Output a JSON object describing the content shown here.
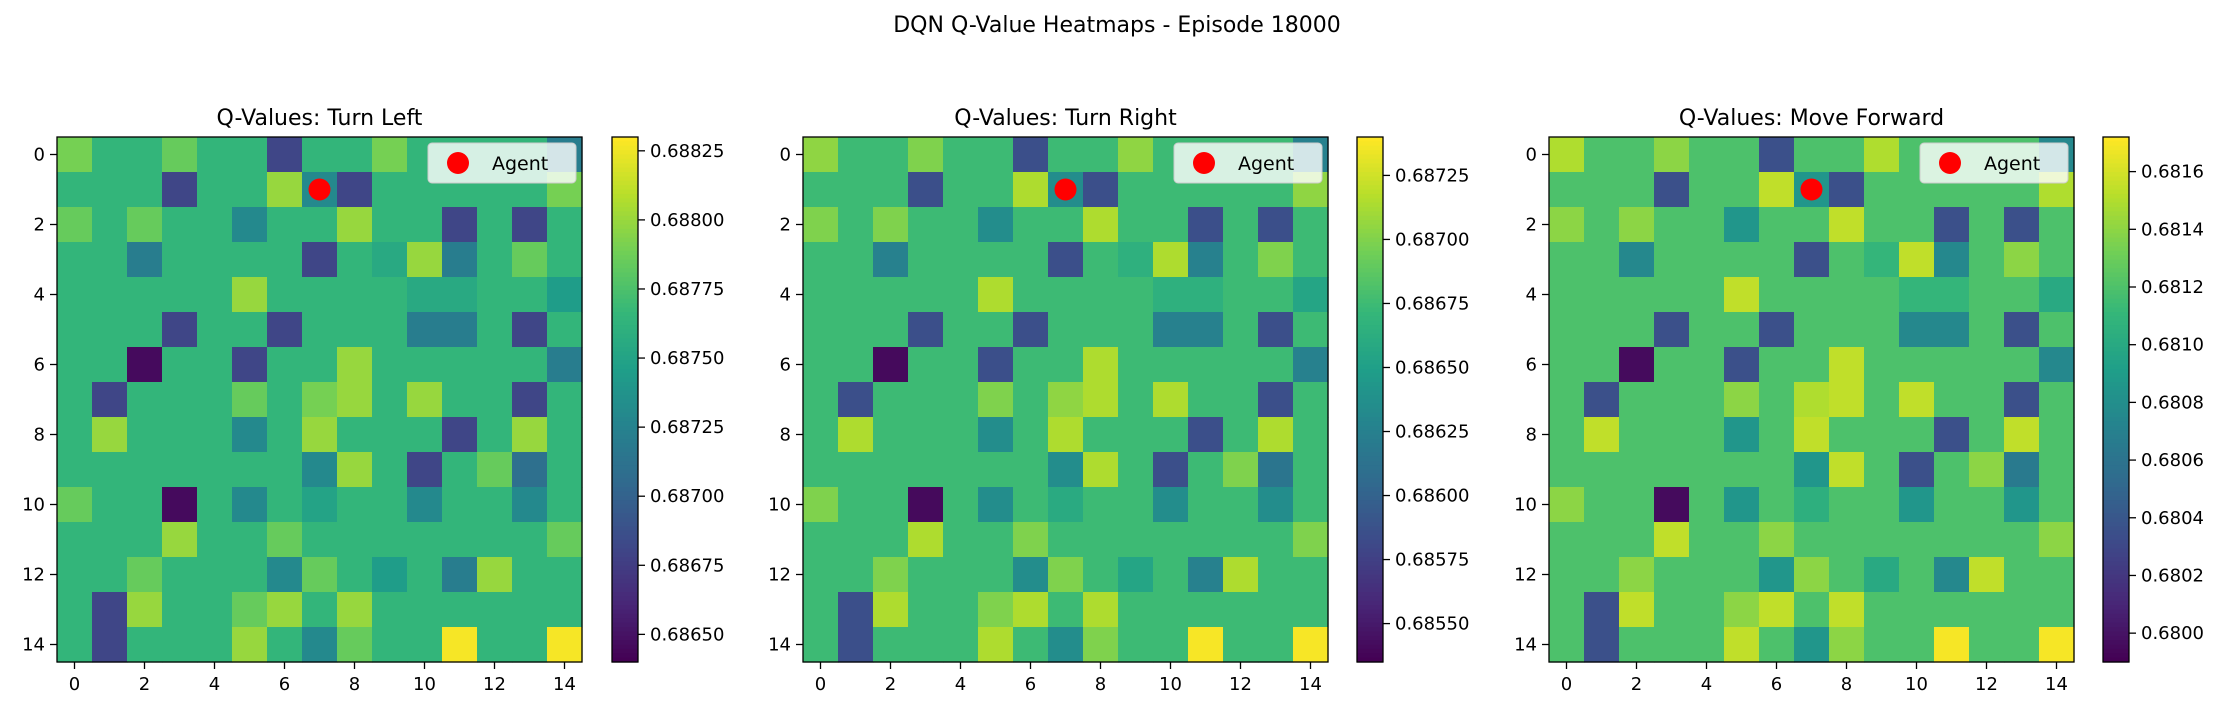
{
  "figure": {
    "suptitle": "DQN Q-Value Heatmaps - Episode 18000"
  },
  "palette": {
    "viridis": [
      "#440154",
      "#482878",
      "#3e4989",
      "#31688e",
      "#26828e",
      "#1f9e89",
      "#35b779",
      "#6ece58",
      "#b5de2b",
      "#fde725"
    ],
    "agent": "#ff0000",
    "legend_bg": "#ffffff"
  },
  "chart_data": [
    {
      "type": "heatmap",
      "title": "Q-Values: Turn Left",
      "legend": {
        "label": "Agent",
        "placement": "top-right"
      },
      "agent": {
        "x": 7,
        "y": 1
      },
      "xticks": [
        0,
        2,
        4,
        6,
        8,
        10,
        12,
        14
      ],
      "yticks": [
        0,
        2,
        4,
        6,
        8,
        10,
        12,
        14
      ],
      "colorbar": {
        "vmin": 0.6864,
        "vmax": 0.6883,
        "ticks": [
          0.6865,
          0.68675,
          0.687,
          0.68725,
          0.6875,
          0.68775,
          0.688,
          0.68825
        ],
        "tick_labels": [
          "0.68650",
          "0.68675",
          "0.68700",
          "0.68725",
          "0.68750",
          "0.68775",
          "0.68800",
          "0.68825"
        ]
      },
      "grid": [
        [
          0.6879,
          0.68765,
          0.68765,
          0.68785,
          0.68765,
          0.68765,
          0.6868,
          0.68765,
          0.68765,
          0.6879,
          0.68765,
          0.68765,
          0.68765,
          0.68765,
          0.6872
        ],
        [
          0.68765,
          0.68765,
          0.68765,
          0.6868,
          0.68765,
          0.68765,
          0.688,
          0.6873,
          0.6868,
          0.68765,
          0.68765,
          0.68765,
          0.68765,
          0.68765,
          0.6879
        ],
        [
          0.68785,
          0.68765,
          0.68785,
          0.68765,
          0.68765,
          0.6873,
          0.68765,
          0.68765,
          0.688,
          0.68765,
          0.68765,
          0.6868,
          0.68765,
          0.6868,
          0.68765
        ],
        [
          0.68765,
          0.68765,
          0.6872,
          0.68765,
          0.68765,
          0.68765,
          0.68765,
          0.6868,
          0.68765,
          0.68755,
          0.688,
          0.6872,
          0.68765,
          0.68785,
          0.68765
        ],
        [
          0.68765,
          0.68765,
          0.68765,
          0.68765,
          0.68765,
          0.688,
          0.68765,
          0.68765,
          0.68765,
          0.68765,
          0.68755,
          0.68755,
          0.68765,
          0.68765,
          0.68745
        ],
        [
          0.68765,
          0.68765,
          0.68765,
          0.6868,
          0.68765,
          0.68765,
          0.6868,
          0.68765,
          0.68765,
          0.68765,
          0.6872,
          0.6872,
          0.68765,
          0.6868,
          0.68765
        ],
        [
          0.68765,
          0.68765,
          0.68645,
          0.68765,
          0.68765,
          0.6868,
          0.68765,
          0.68765,
          0.688,
          0.68765,
          0.68765,
          0.68765,
          0.68765,
          0.68765,
          0.6872
        ],
        [
          0.68765,
          0.6868,
          0.68765,
          0.68765,
          0.68765,
          0.68785,
          0.68765,
          0.6879,
          0.688,
          0.68765,
          0.688,
          0.68765,
          0.68765,
          0.6868,
          0.68765
        ],
        [
          0.68765,
          0.688,
          0.68765,
          0.68765,
          0.68765,
          0.6873,
          0.68765,
          0.688,
          0.68765,
          0.68765,
          0.68765,
          0.6868,
          0.68765,
          0.688,
          0.68765
        ],
        [
          0.68765,
          0.68765,
          0.68765,
          0.68765,
          0.68765,
          0.68765,
          0.68765,
          0.6873,
          0.688,
          0.68765,
          0.6868,
          0.68765,
          0.68785,
          0.6871,
          0.68765
        ],
        [
          0.68785,
          0.68765,
          0.68765,
          0.68645,
          0.68765,
          0.6873,
          0.68765,
          0.6875,
          0.68765,
          0.68765,
          0.6873,
          0.68765,
          0.68765,
          0.6873,
          0.68765
        ],
        [
          0.68765,
          0.68765,
          0.68765,
          0.688,
          0.68765,
          0.68765,
          0.68785,
          0.68765,
          0.68765,
          0.68765,
          0.68765,
          0.68765,
          0.68765,
          0.68765,
          0.68785
        ],
        [
          0.68765,
          0.68765,
          0.68785,
          0.68765,
          0.68765,
          0.68765,
          0.6873,
          0.68785,
          0.68765,
          0.68745,
          0.68765,
          0.6872,
          0.688,
          0.68765,
          0.68765
        ],
        [
          0.68765,
          0.6868,
          0.688,
          0.68765,
          0.68765,
          0.68785,
          0.688,
          0.68765,
          0.688,
          0.68765,
          0.68765,
          0.68765,
          0.68765,
          0.68765,
          0.68765
        ],
        [
          0.68765,
          0.6868,
          0.68765,
          0.68765,
          0.68765,
          0.688,
          0.68765,
          0.6873,
          0.68785,
          0.68765,
          0.68765,
          0.68828,
          0.68765,
          0.68765,
          0.68828
        ]
      ]
    },
    {
      "type": "heatmap",
      "title": "Q-Values: Turn Right",
      "legend": {
        "label": "Agent",
        "placement": "top-right"
      },
      "agent": {
        "x": 7,
        "y": 1
      },
      "xticks": [
        0,
        2,
        4,
        6,
        8,
        10,
        12,
        14
      ],
      "yticks": [
        0,
        2,
        4,
        6,
        8,
        10,
        12,
        14
      ],
      "colorbar": {
        "vmin": 0.68535,
        "vmax": 0.6874,
        "ticks": [
          0.6855,
          0.68575,
          0.686,
          0.68625,
          0.6865,
          0.68675,
          0.687,
          0.68725
        ],
        "tick_labels": [
          "0.68550",
          "0.68575",
          "0.68600",
          "0.68625",
          "0.68650",
          "0.68675",
          "0.68700",
          "0.68725"
        ]
      },
      "grid": [
        [
          0.68705,
          0.68675,
          0.68675,
          0.687,
          0.68675,
          0.68675,
          0.68585,
          0.68675,
          0.68675,
          0.68705,
          0.68675,
          0.68675,
          0.68675,
          0.68675,
          0.68625
        ],
        [
          0.68675,
          0.68675,
          0.68675,
          0.68585,
          0.68675,
          0.68675,
          0.68715,
          0.68635,
          0.68585,
          0.68675,
          0.68675,
          0.68675,
          0.68675,
          0.68675,
          0.68705
        ],
        [
          0.687,
          0.68675,
          0.687,
          0.68675,
          0.68675,
          0.68635,
          0.68675,
          0.68675,
          0.68715,
          0.68675,
          0.68675,
          0.68585,
          0.68675,
          0.68585,
          0.68675
        ],
        [
          0.68675,
          0.68675,
          0.68625,
          0.68675,
          0.68675,
          0.68675,
          0.68675,
          0.68585,
          0.68675,
          0.68665,
          0.68715,
          0.68625,
          0.68675,
          0.687,
          0.68675
        ],
        [
          0.68675,
          0.68675,
          0.68675,
          0.68675,
          0.68675,
          0.68715,
          0.68675,
          0.68675,
          0.68675,
          0.68675,
          0.68665,
          0.68665,
          0.68675,
          0.68675,
          0.68655
        ],
        [
          0.68675,
          0.68675,
          0.68675,
          0.68585,
          0.68675,
          0.68675,
          0.68585,
          0.68675,
          0.68675,
          0.68675,
          0.68625,
          0.68625,
          0.68675,
          0.68585,
          0.68675
        ],
        [
          0.68675,
          0.68675,
          0.6854,
          0.68675,
          0.68675,
          0.68585,
          0.68675,
          0.68675,
          0.68715,
          0.68675,
          0.68675,
          0.68675,
          0.68675,
          0.68675,
          0.68625
        ],
        [
          0.68675,
          0.68585,
          0.68675,
          0.68675,
          0.68675,
          0.687,
          0.68675,
          0.68705,
          0.68715,
          0.68675,
          0.68715,
          0.68675,
          0.68675,
          0.68585,
          0.68675
        ],
        [
          0.68675,
          0.68715,
          0.68675,
          0.68675,
          0.68675,
          0.68635,
          0.68675,
          0.68715,
          0.68675,
          0.68675,
          0.68675,
          0.68585,
          0.68675,
          0.68715,
          0.68675
        ],
        [
          0.68675,
          0.68675,
          0.68675,
          0.68675,
          0.68675,
          0.68675,
          0.68675,
          0.68635,
          0.68715,
          0.68675,
          0.68585,
          0.68675,
          0.687,
          0.68615,
          0.68675
        ],
        [
          0.687,
          0.68675,
          0.68675,
          0.6854,
          0.68675,
          0.68635,
          0.68675,
          0.6866,
          0.68675,
          0.68675,
          0.68635,
          0.68675,
          0.68675,
          0.68635,
          0.68675
        ],
        [
          0.68675,
          0.68675,
          0.68675,
          0.68715,
          0.68675,
          0.68675,
          0.687,
          0.68675,
          0.68675,
          0.68675,
          0.68675,
          0.68675,
          0.68675,
          0.68675,
          0.687
        ],
        [
          0.68675,
          0.68675,
          0.687,
          0.68675,
          0.68675,
          0.68675,
          0.68635,
          0.687,
          0.68675,
          0.68655,
          0.68675,
          0.68625,
          0.68715,
          0.68675,
          0.68675
        ],
        [
          0.68675,
          0.68585,
          0.68715,
          0.68675,
          0.68675,
          0.687,
          0.68715,
          0.68675,
          0.68715,
          0.68675,
          0.68675,
          0.68675,
          0.68675,
          0.68675,
          0.68675
        ],
        [
          0.68675,
          0.68585,
          0.68675,
          0.68675,
          0.68675,
          0.68715,
          0.68675,
          0.68635,
          0.687,
          0.68675,
          0.68675,
          0.68738,
          0.68675,
          0.68675,
          0.68738
        ]
      ]
    },
    {
      "type": "heatmap",
      "title": "Q-Values: Move Forward",
      "legend": {
        "label": "Agent",
        "placement": "top-right"
      },
      "agent": {
        "x": 7,
        "y": 1
      },
      "xticks": [
        0,
        2,
        4,
        6,
        8,
        10,
        12,
        14
      ],
      "yticks": [
        0,
        2,
        4,
        6,
        8,
        10,
        12,
        14
      ],
      "colorbar": {
        "vmin": 0.6799,
        "vmax": 0.68172,
        "ticks": [
          0.68,
          0.6802,
          0.6804,
          0.6806,
          0.6808,
          0.681,
          0.6812,
          0.6814,
          0.6816
        ],
        "tick_labels": [
          "0.6800",
          "0.6802",
          "0.6804",
          "0.6806",
          "0.6808",
          "0.6810",
          "0.6812",
          "0.6814",
          "0.6816"
        ]
      },
      "grid": [
        [
          0.6815,
          0.6812,
          0.6812,
          0.6814,
          0.6812,
          0.6812,
          0.68035,
          0.6812,
          0.6812,
          0.6815,
          0.6812,
          0.6812,
          0.6812,
          0.6812,
          0.68075
        ],
        [
          0.6812,
          0.6812,
          0.6812,
          0.68035,
          0.6812,
          0.6812,
          0.68155,
          0.68085,
          0.68035,
          0.6812,
          0.6812,
          0.6812,
          0.6812,
          0.6812,
          0.6815
        ],
        [
          0.6814,
          0.6812,
          0.6814,
          0.6812,
          0.6812,
          0.68085,
          0.6812,
          0.6812,
          0.68155,
          0.6812,
          0.6812,
          0.68035,
          0.6812,
          0.68035,
          0.6812
        ],
        [
          0.6812,
          0.6812,
          0.68075,
          0.6812,
          0.6812,
          0.6812,
          0.6812,
          0.68035,
          0.6812,
          0.6811,
          0.68155,
          0.68075,
          0.6812,
          0.6814,
          0.6812
        ],
        [
          0.6812,
          0.6812,
          0.6812,
          0.6812,
          0.6812,
          0.68155,
          0.6812,
          0.6812,
          0.6812,
          0.6812,
          0.6811,
          0.6811,
          0.6812,
          0.6812,
          0.681
        ],
        [
          0.6812,
          0.6812,
          0.6812,
          0.68035,
          0.6812,
          0.6812,
          0.68035,
          0.6812,
          0.6812,
          0.6812,
          0.68075,
          0.68075,
          0.6812,
          0.68035,
          0.6812
        ],
        [
          0.6812,
          0.6812,
          0.67995,
          0.6812,
          0.6812,
          0.68035,
          0.6812,
          0.6812,
          0.68155,
          0.6812,
          0.6812,
          0.6812,
          0.6812,
          0.6812,
          0.68075
        ],
        [
          0.6812,
          0.68035,
          0.6812,
          0.6812,
          0.6812,
          0.6814,
          0.6812,
          0.6815,
          0.68155,
          0.6812,
          0.68155,
          0.6812,
          0.6812,
          0.68035,
          0.6812
        ],
        [
          0.6812,
          0.68155,
          0.6812,
          0.6812,
          0.6812,
          0.68085,
          0.6812,
          0.68155,
          0.6812,
          0.6812,
          0.6812,
          0.68035,
          0.6812,
          0.68155,
          0.6812
        ],
        [
          0.6812,
          0.6812,
          0.6812,
          0.6812,
          0.6812,
          0.6812,
          0.6812,
          0.68085,
          0.68155,
          0.6812,
          0.68035,
          0.6812,
          0.6814,
          0.68065,
          0.6812
        ],
        [
          0.6814,
          0.6812,
          0.6812,
          0.67995,
          0.6812,
          0.68085,
          0.6812,
          0.68105,
          0.6812,
          0.6812,
          0.68085,
          0.6812,
          0.6812,
          0.68085,
          0.6812
        ],
        [
          0.6812,
          0.6812,
          0.6812,
          0.68155,
          0.6812,
          0.6812,
          0.6814,
          0.6812,
          0.6812,
          0.6812,
          0.6812,
          0.6812,
          0.6812,
          0.6812,
          0.6814
        ],
        [
          0.6812,
          0.6812,
          0.6814,
          0.6812,
          0.6812,
          0.6812,
          0.68085,
          0.6814,
          0.6812,
          0.681,
          0.6812,
          0.68075,
          0.68155,
          0.6812,
          0.6812
        ],
        [
          0.6812,
          0.68035,
          0.68155,
          0.6812,
          0.6812,
          0.6814,
          0.68155,
          0.6812,
          0.68155,
          0.6812,
          0.6812,
          0.6812,
          0.6812,
          0.6812,
          0.6812
        ],
        [
          0.6812,
          0.68035,
          0.6812,
          0.6812,
          0.6812,
          0.68155,
          0.6812,
          0.68085,
          0.6814,
          0.6812,
          0.6812,
          0.6817,
          0.6812,
          0.6812,
          0.6817
        ]
      ]
    }
  ]
}
